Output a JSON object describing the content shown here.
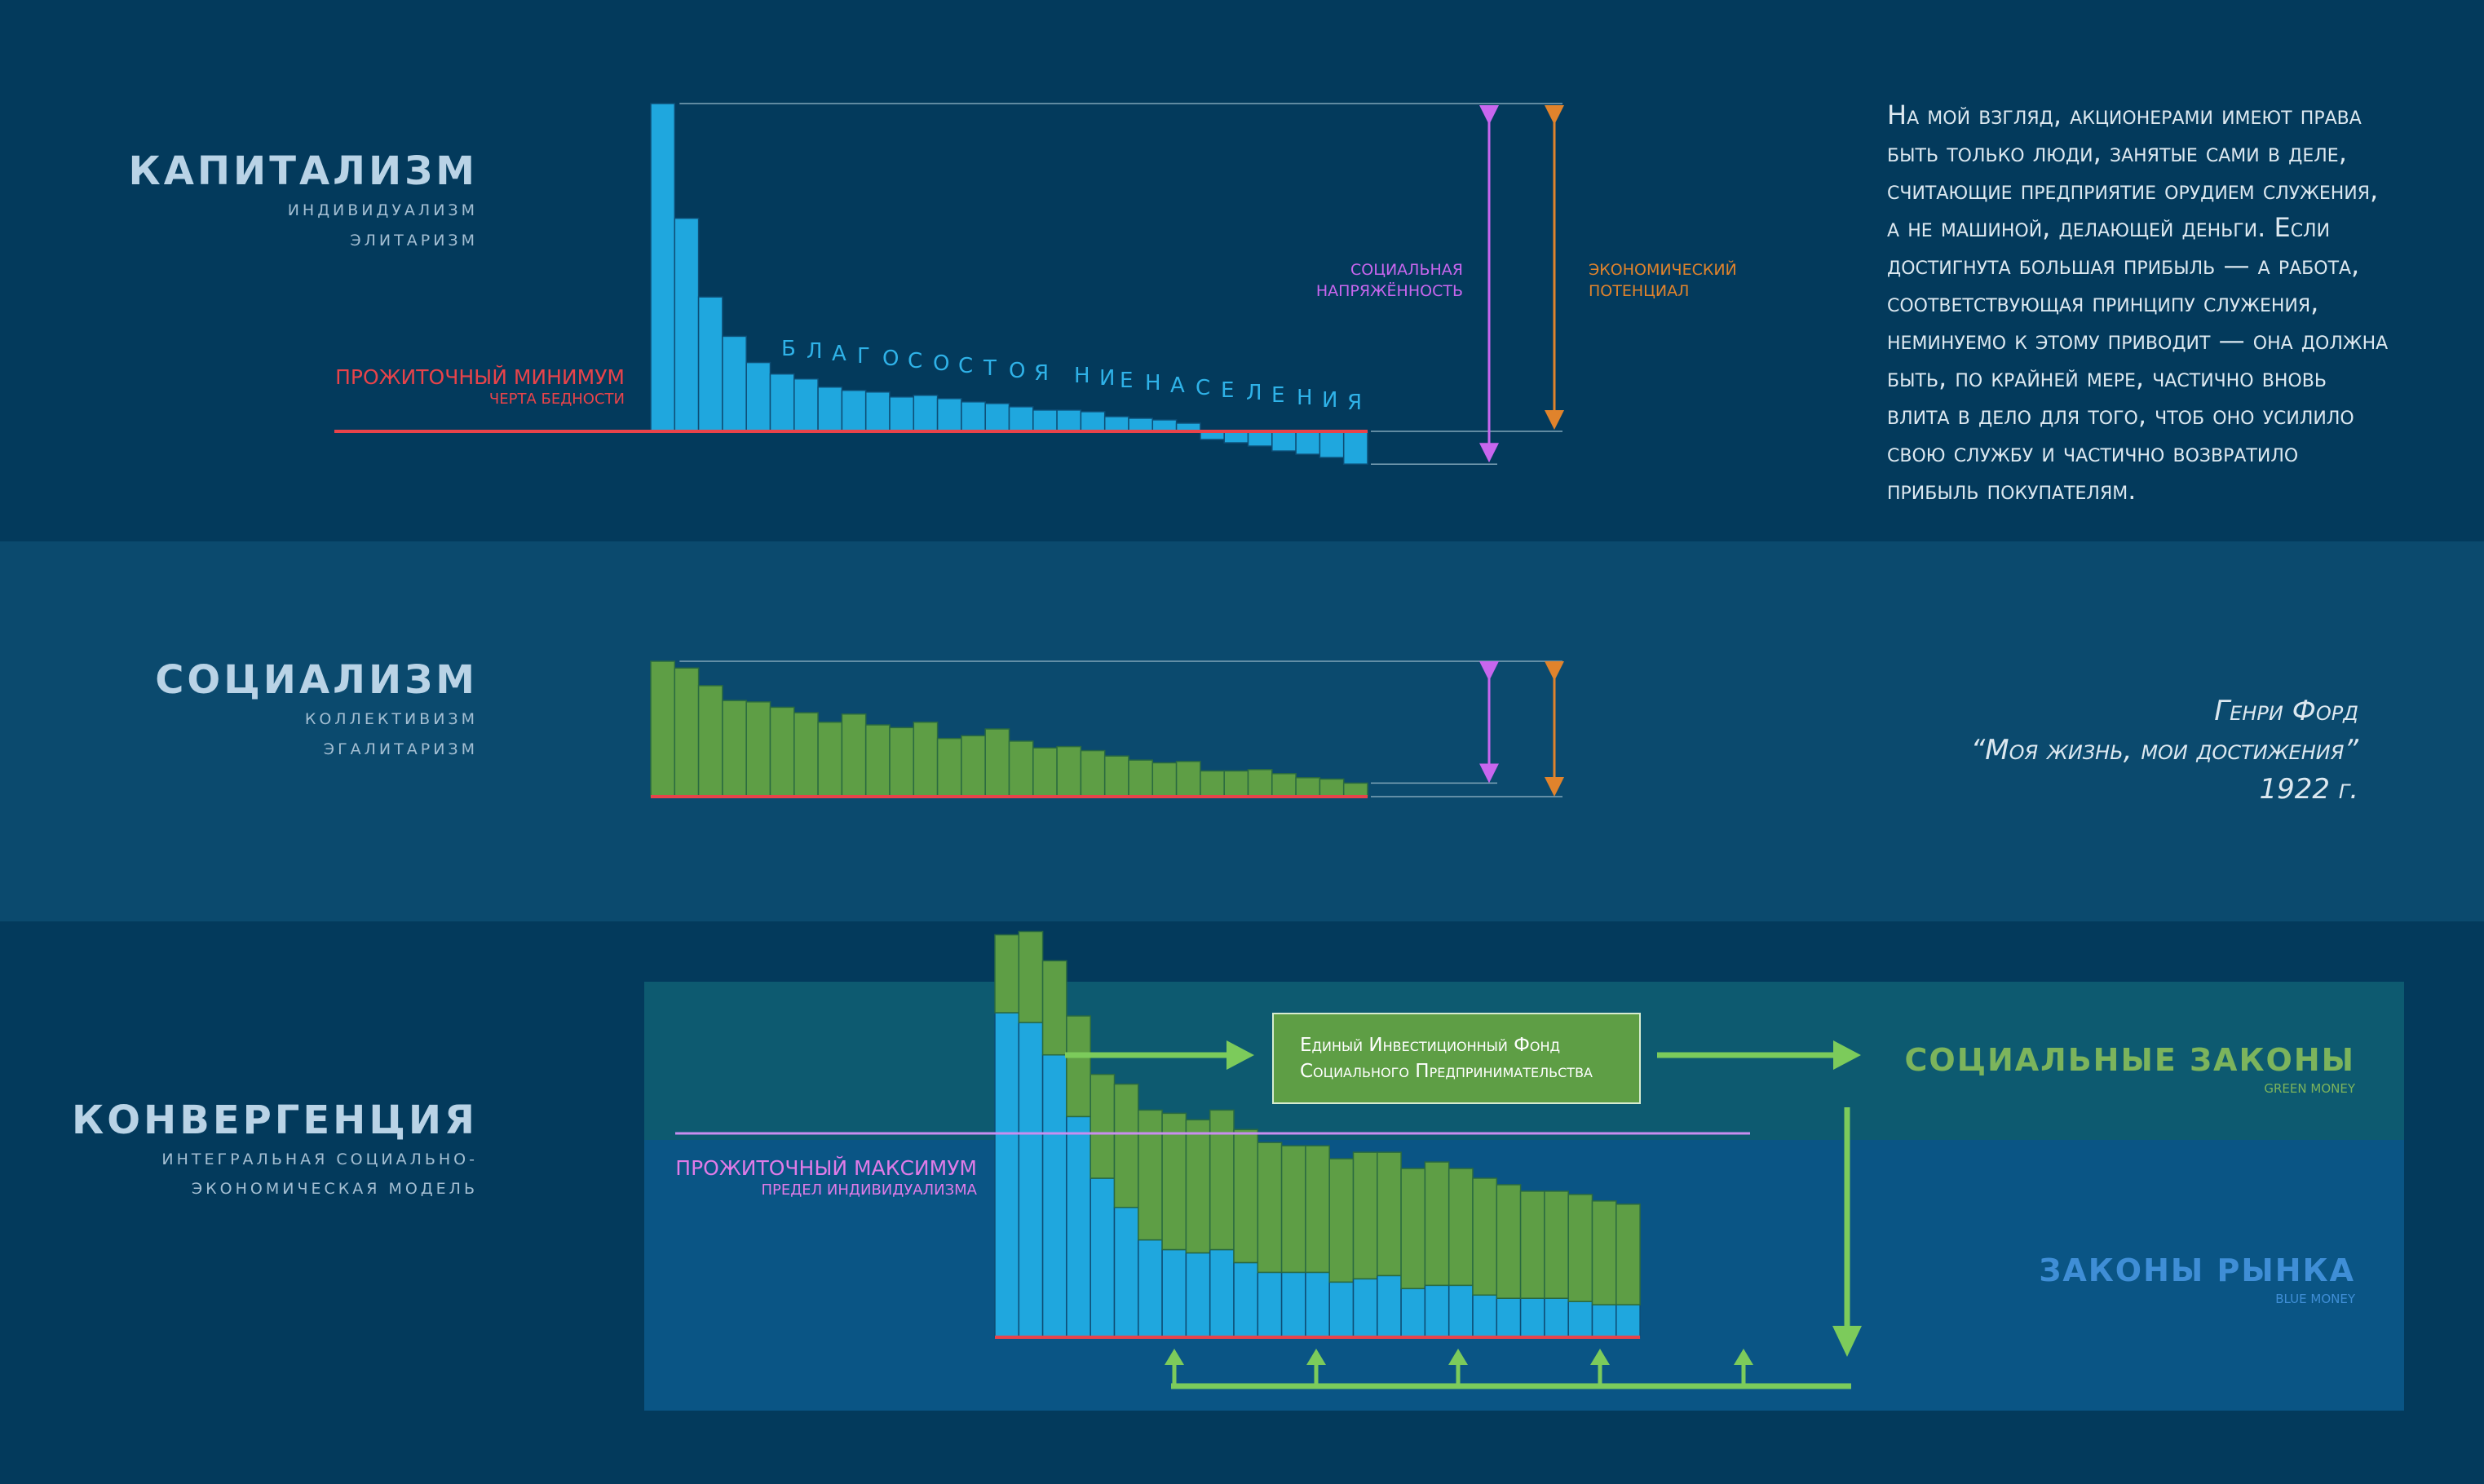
{
  "colors": {
    "background": "#033a5c",
    "band_socialism": "#0b4a6e",
    "panel_top": "#0d5a70",
    "panel_bottom": "#0a5585",
    "blue_bar": "#1fa7de",
    "green_bar": "#5e9e45",
    "red_line": "#e8434a",
    "violet": "#c866ee",
    "orange": "#e0832c",
    "arrow_green": "#7ccb5b"
  },
  "capitalism": {
    "title": "Капитализм",
    "sub1": "индивидуализм",
    "sub2": "элитаризм",
    "min_label": "Прожиточный минимум",
    "min_sublabel": "черта бедности",
    "wealth_letters": [
      "Б",
      "Л",
      "А",
      "Г",
      "О",
      "С",
      "О",
      "С",
      "Т",
      "О",
      "Я",
      "Н",
      "И",
      "Е",
      "Н",
      "А",
      "С",
      "Е",
      "Л",
      "Е",
      "Н",
      "И",
      "Я"
    ]
  },
  "legend": {
    "tension": "социальная напряжённость",
    "potential": "экономический потенциал"
  },
  "socialism": {
    "title": "Социализм",
    "sub1": "коллективизм",
    "sub2": "эгалитаризм"
  },
  "convergence": {
    "title": "Конвергенция",
    "sub1": "интегральная социально-",
    "sub2": "экономическая модель",
    "max_label": "Прожиточный максимум",
    "max_sublabel": "предел индивидуализма",
    "fund_line1": "Единый Инвестиционный Фонд",
    "fund_line2": "Социального Предпринимательства",
    "social_laws": "Социальные законы",
    "social_laws_sub": "Green Money",
    "market_laws": "Законы рынка",
    "market_laws_sub": "Blue Money"
  },
  "quote": {
    "text": "На мой взгляд, акционерами имеют права быть только люди, занятые сами в деле, считающие предприятие орудием служения, а не машиной, делающей деньги. Если достигнута большая прибыль — а работа, соответствующая принципу служения, неминуемо к этому приводит — она должна быть, по крайней мере, частично вновь влита в дело для того, чтоб оно усилило свою службу и частично возвратило прибыль покупателям.",
    "author": "Генри Форд",
    "book": "“Моя жизнь, мои достижения”",
    "year": "1922 г."
  },
  "chart_data": [
    {
      "type": "bar",
      "name_ref": "capitalism",
      "values_relative_to_minimum": [
        1.0,
        0.65,
        0.41,
        0.29,
        0.21,
        0.175,
        0.16,
        0.135,
        0.125,
        0.12,
        0.105,
        0.11,
        0.1,
        0.09,
        0.085,
        0.075,
        0.065,
        0.065,
        0.06,
        0.045,
        0.04,
        0.035,
        0.025,
        -0.025,
        -0.035,
        -0.045,
        -0.06,
        -0.07,
        -0.08,
        -0.1
      ]
    },
    {
      "type": "bar",
      "name_ref": "socialism",
      "values": [
        1.0,
        0.95,
        0.82,
        0.71,
        0.7,
        0.66,
        0.62,
        0.55,
        0.61,
        0.53,
        0.51,
        0.55,
        0.43,
        0.45,
        0.5,
        0.41,
        0.36,
        0.37,
        0.34,
        0.3,
        0.27,
        0.25,
        0.26,
        0.19,
        0.19,
        0.2,
        0.17,
        0.14,
        0.13,
        0.1
      ]
    },
    {
      "type": "bar",
      "name_ref": "convergence",
      "blue": [
        1.0,
        0.97,
        0.87,
        0.68,
        0.49,
        0.4,
        0.3,
        0.27,
        0.26,
        0.27,
        0.23,
        0.2,
        0.2,
        0.2,
        0.17,
        0.18,
        0.19,
        0.15,
        0.16,
        0.16,
        0.13,
        0.12,
        0.12,
        0.12,
        0.11,
        0.1,
        0.1
      ],
      "green": [
        0.24,
        0.28,
        0.29,
        0.31,
        0.32,
        0.38,
        0.4,
        0.42,
        0.41,
        0.43,
        0.41,
        0.4,
        0.39,
        0.39,
        0.38,
        0.39,
        0.38,
        0.37,
        0.38,
        0.36,
        0.36,
        0.35,
        0.33,
        0.33,
        0.33,
        0.32,
        0.31
      ]
    }
  ]
}
